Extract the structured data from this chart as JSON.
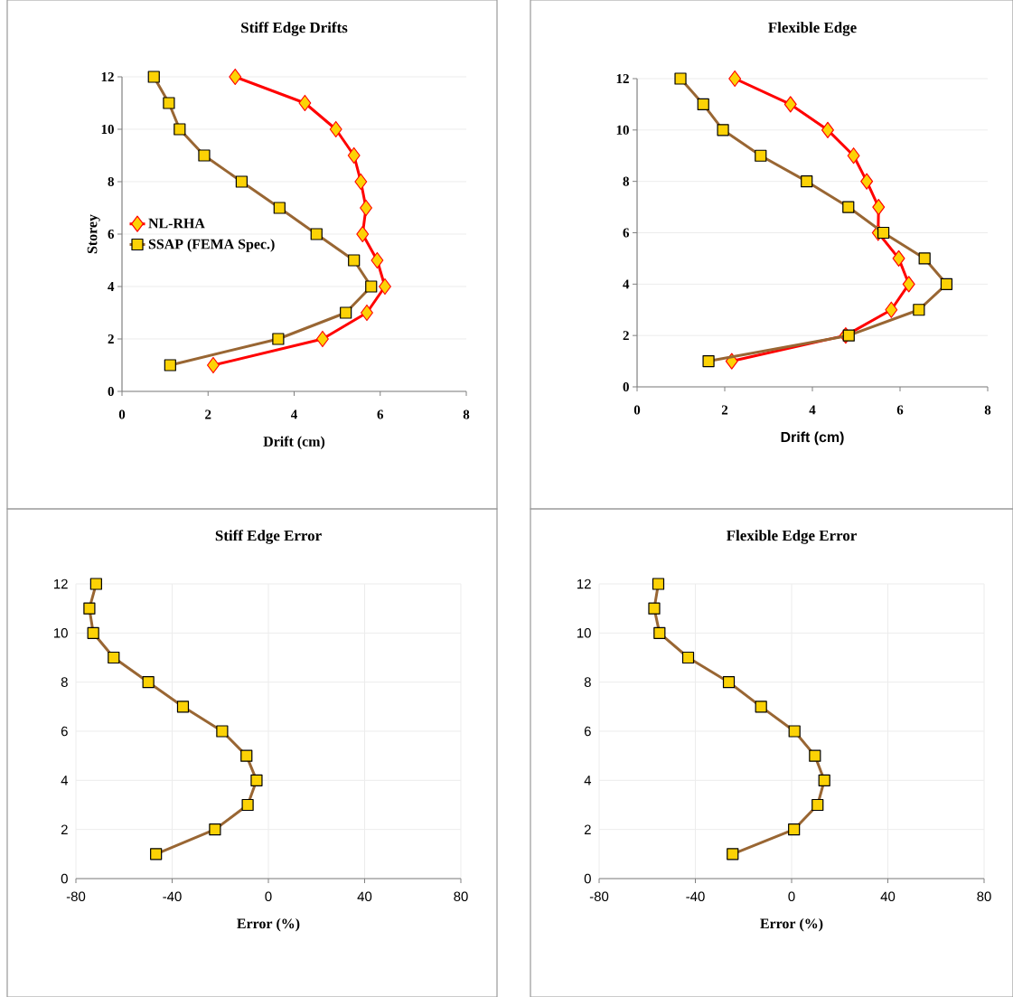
{
  "chart_data": [
    {
      "type": "line",
      "title": "Stiff Edge Drifts",
      "xlabel": "Drift (cm)",
      "ylabel": "Storey",
      "xlim": [
        0,
        8
      ],
      "xticks": [
        0,
        2,
        4,
        6,
        8
      ],
      "ylim": [
        0,
        12
      ],
      "yticks": [
        0,
        2,
        4,
        6,
        8,
        10,
        12
      ],
      "grid": "y",
      "legend": "left",
      "series": [
        {
          "name": "NL-RHA",
          "color": "#ff0000",
          "marker": "diamond",
          "values": [
            12,
            11,
            10,
            9,
            8,
            7,
            6,
            5,
            4,
            3,
            2,
            1
          ],
          "x": [
            2.63,
            4.25,
            4.97,
            5.39,
            5.55,
            5.67,
            5.59,
            5.93,
            6.11,
            5.69,
            4.66,
            2.12
          ]
        },
        {
          "name": "SSAP (FEMA Spec.)",
          "color": "#996633",
          "marker": "square",
          "values": [
            12,
            11,
            10,
            9,
            8,
            7,
            6,
            5,
            4,
            3,
            2,
            1
          ],
          "x": [
            0.74,
            1.09,
            1.34,
            1.91,
            2.78,
            3.66,
            4.52,
            5.39,
            5.79,
            5.2,
            3.63,
            1.12
          ]
        }
      ]
    },
    {
      "type": "line",
      "title": "Flexible Edge",
      "xlabel": "Drift (cm)",
      "xlim": [
        0,
        8
      ],
      "xticks": [
        0,
        2,
        4,
        6,
        8
      ],
      "ylim": [
        0,
        12
      ],
      "yticks": [
        0,
        2,
        4,
        6,
        8,
        10,
        12
      ],
      "grid": "y",
      "series": [
        {
          "color": "#ff0000",
          "marker": "diamond",
          "values": [
            12,
            11,
            10,
            9,
            8,
            7,
            6,
            5,
            4,
            3,
            2,
            1
          ],
          "x": [
            2.23,
            3.5,
            4.35,
            4.94,
            5.24,
            5.51,
            5.5,
            5.97,
            6.2,
            5.8,
            4.76,
            2.16
          ]
        },
        {
          "color": "#996633",
          "marker": "square",
          "values": [
            12,
            11,
            10,
            9,
            8,
            7,
            6,
            5,
            4,
            3,
            2,
            1
          ],
          "x": [
            0.99,
            1.51,
            1.96,
            2.82,
            3.87,
            4.82,
            5.62,
            6.56,
            7.06,
            6.43,
            4.83,
            1.63
          ]
        }
      ]
    },
    {
      "type": "line",
      "title": "Stiff Edge Error",
      "xlabel": "Error (%)",
      "xlim": [
        -80,
        80
      ],
      "xticks": [
        -80,
        -40,
        0,
        40,
        80
      ],
      "ylim": [
        0,
        12
      ],
      "yticks": [
        0,
        2,
        4,
        6,
        8,
        10,
        12
      ],
      "grid": true,
      "series": [
        {
          "color": "#996633",
          "marker": "square",
          "values": [
            12,
            11,
            10,
            9,
            8,
            7,
            6,
            5,
            4,
            3,
            2,
            1
          ],
          "x": [
            -71.6,
            -74.4,
            -72.8,
            -64.3,
            -49.9,
            -35.5,
            -19.2,
            -9.1,
            -4.9,
            -8.6,
            -22.2,
            -46.7
          ]
        }
      ]
    },
    {
      "type": "line",
      "title": "Flexible Edge Error",
      "xlabel": "Error (%)",
      "xlim": [
        -80,
        80
      ],
      "xticks": [
        -80,
        -40,
        0,
        40,
        80
      ],
      "ylim": [
        0,
        12
      ],
      "yticks": [
        0,
        2,
        4,
        6,
        8,
        10,
        12
      ],
      "grid": true,
      "series": [
        {
          "color": "#996633",
          "marker": "square",
          "values": [
            12,
            11,
            10,
            9,
            8,
            7,
            6,
            5,
            4,
            3,
            2,
            1
          ],
          "x": [
            -55.4,
            -57.1,
            -54.9,
            -43.0,
            -26.1,
            -12.7,
            1.2,
            9.7,
            13.6,
            10.8,
            1.0,
            -24.5
          ]
        }
      ]
    }
  ]
}
